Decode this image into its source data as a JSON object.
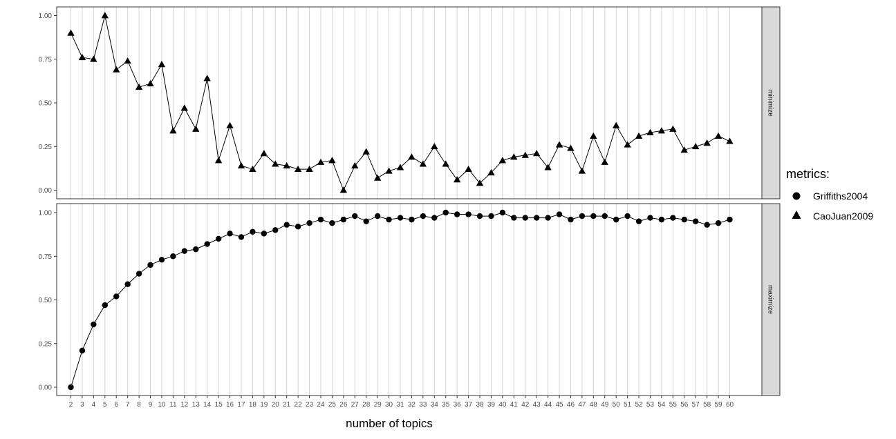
{
  "chart_data": {
    "type": "line",
    "xlabel": "number of topics",
    "x": [
      2,
      3,
      4,
      5,
      6,
      7,
      8,
      9,
      10,
      11,
      12,
      13,
      14,
      15,
      16,
      17,
      18,
      19,
      20,
      21,
      22,
      23,
      24,
      25,
      26,
      27,
      28,
      29,
      30,
      31,
      32,
      33,
      34,
      35,
      36,
      37,
      38,
      39,
      40,
      41,
      42,
      43,
      44,
      45,
      46,
      47,
      48,
      49,
      50,
      51,
      52,
      53,
      54,
      55,
      56,
      57,
      58,
      59,
      60
    ],
    "xlim": [
      2,
      60
    ],
    "ylim": [
      0,
      1
    ],
    "y_ticks": [
      "0.00",
      "0.25",
      "0.50",
      "0.75",
      "1.00"
    ],
    "grid": "vertical-major",
    "legend": {
      "title": "metrics:",
      "position": "right",
      "items": [
        {
          "label": "Griffiths2004",
          "shape": "circle"
        },
        {
          "label": "CaoJuan2009",
          "shape": "triangle"
        }
      ]
    },
    "panels": [
      {
        "strip": "minimize",
        "series": [
          {
            "name": "CaoJuan2009",
            "shape": "triangle",
            "values": [
              0.9,
              0.76,
              0.75,
              1.0,
              0.69,
              0.74,
              0.59,
              0.61,
              0.72,
              0.34,
              0.47,
              0.35,
              0.64,
              0.17,
              0.37,
              0.14,
              0.12,
              0.21,
              0.15,
              0.14,
              0.12,
              0.12,
              0.16,
              0.17,
              0.0,
              0.14,
              0.22,
              0.07,
              0.11,
              0.13,
              0.19,
              0.15,
              0.25,
              0.15,
              0.06,
              0.12,
              0.04,
              0.1,
              0.17,
              0.19,
              0.2,
              0.21,
              0.13,
              0.26,
              0.24,
              0.11,
              0.31,
              0.16,
              0.37,
              0.26,
              0.31,
              0.33,
              0.34,
              0.35,
              0.23,
              0.25,
              0.27,
              0.31,
              0.28
            ]
          }
        ]
      },
      {
        "strip": "maximize",
        "series": [
          {
            "name": "Griffiths2004",
            "shape": "circle",
            "values": [
              0.0,
              0.21,
              0.36,
              0.47,
              0.52,
              0.59,
              0.65,
              0.7,
              0.73,
              0.75,
              0.78,
              0.79,
              0.82,
              0.85,
              0.88,
              0.86,
              0.89,
              0.88,
              0.9,
              0.93,
              0.92,
              0.94,
              0.96,
              0.94,
              0.96,
              0.98,
              0.95,
              0.98,
              0.96,
              0.97,
              0.96,
              0.98,
              0.97,
              1.0,
              0.99,
              0.99,
              0.98,
              0.98,
              1.0,
              0.97,
              0.97,
              0.97,
              0.97,
              0.99,
              0.96,
              0.98,
              0.98,
              0.98,
              0.96,
              0.98,
              0.95,
              0.97,
              0.96,
              0.97,
              0.96,
              0.95,
              0.93,
              0.94,
              0.96
            ]
          }
        ]
      }
    ]
  }
}
